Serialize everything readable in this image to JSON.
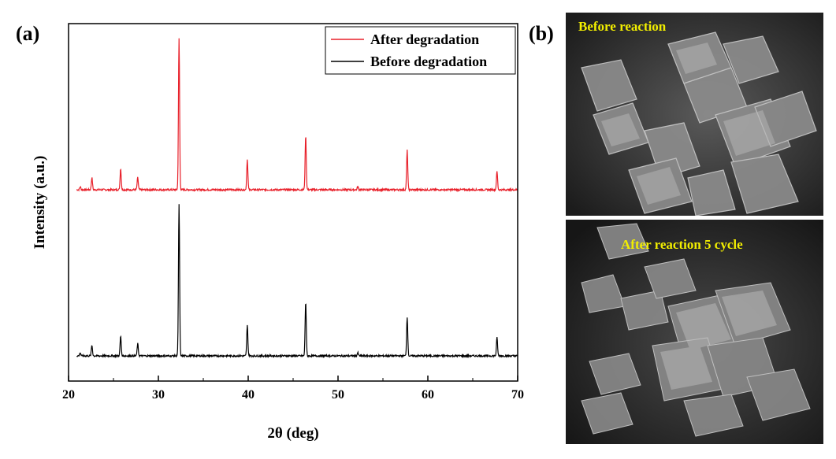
{
  "panels": {
    "a_label": "(a)",
    "b_label": "(b)"
  },
  "chart_data": {
    "type": "line",
    "xlabel": "2θ (deg)",
    "ylabel": "Intensity (a.u.)",
    "xlim": [
      20,
      70
    ],
    "xticks": [
      20,
      30,
      40,
      50,
      60,
      70
    ],
    "xtick_labels": [
      "20",
      "30",
      "40",
      "50",
      "60",
      "70"
    ],
    "ylim": [
      0,
      1.1
    ],
    "yticks_shown": false,
    "legend": {
      "position": "top-right"
    },
    "peaks_2theta": [
      21.3,
      22.6,
      25.8,
      27.7,
      32.3,
      39.9,
      46.4,
      52.2,
      57.7,
      67.7
    ],
    "series": [
      {
        "name": "After degradation",
        "color": "#e8202a",
        "offset": 0.55,
        "peak_intensities": [
          0.01,
          0.04,
          0.07,
          0.04,
          0.5,
          0.1,
          0.18,
          0.01,
          0.13,
          0.06
        ]
      },
      {
        "name": "Before degradation",
        "color": "#000000",
        "offset": 0.0,
        "peak_intensities": [
          0.01,
          0.035,
          0.065,
          0.04,
          0.5,
          0.1,
          0.18,
          0.01,
          0.13,
          0.06
        ]
      }
    ]
  },
  "sem_images": {
    "top_caption": "Before reaction",
    "bottom_caption": "After reaction 5 cycle",
    "caption_color": "#f2ee00"
  }
}
